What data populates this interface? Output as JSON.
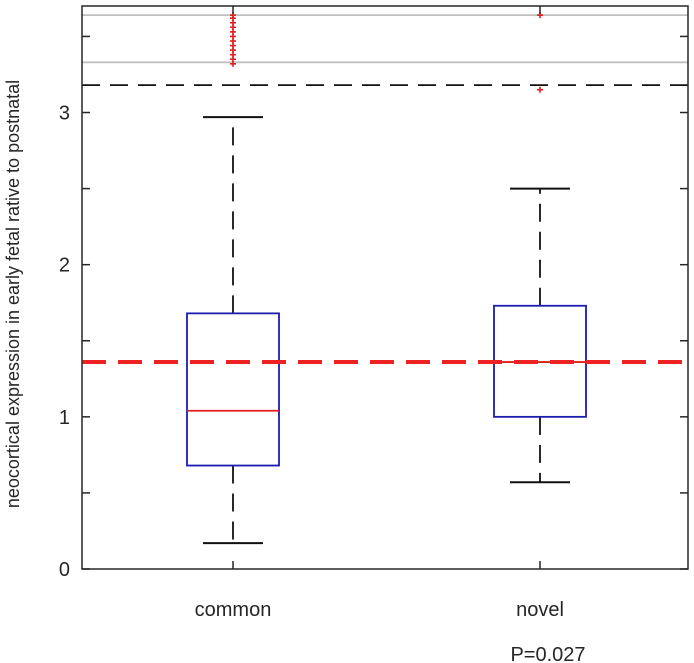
{
  "chart_data": {
    "type": "box",
    "ylabel": "neocortical expression in early fetal rative to postnatal",
    "ylim": [
      0,
      3.7
    ],
    "yticks": [
      0,
      1,
      2,
      3
    ],
    "yticks_minor": [
      0.5,
      1.5,
      2.5,
      3.5
    ],
    "ytick_labels": [
      "0",
      "1",
      "2",
      "3"
    ],
    "categories": [
      "common",
      "novel"
    ],
    "boxes": [
      {
        "category": "common",
        "whisker_low": 0.17,
        "q1": 0.68,
        "median": 1.04,
        "q3": 1.68,
        "whisker_high": 2.97,
        "outliers": [
          3.32,
          3.35,
          3.38,
          3.41,
          3.44,
          3.47,
          3.5,
          3.53,
          3.56,
          3.59,
          3.62,
          3.64
        ]
      },
      {
        "category": "novel",
        "whisker_low": 0.57,
        "q1": 1.0,
        "median": 1.36,
        "q3": 1.73,
        "whisker_high": 2.5,
        "outliers": [
          3.15,
          3.64
        ]
      }
    ],
    "reference_lines": [
      {
        "y": 1.36,
        "style": "dashed",
        "color": "#ee2222",
        "width": "thick"
      },
      {
        "y": 3.18,
        "style": "dashed",
        "color": "#111111",
        "width": "normal"
      },
      {
        "y": 3.33,
        "style": "solid",
        "color": "#c0c0c0",
        "width": "normal"
      },
      {
        "y": 3.64,
        "style": "solid",
        "color": "#c0c0c0",
        "width": "normal"
      }
    ],
    "annotation": "P=0.027",
    "colors": {
      "box": "#1c1cb0",
      "median": "#e11d1d",
      "whisker": "#111111",
      "outlier": "#e11d1d",
      "axis": "#262626"
    },
    "grid": false,
    "legend": "none"
  }
}
